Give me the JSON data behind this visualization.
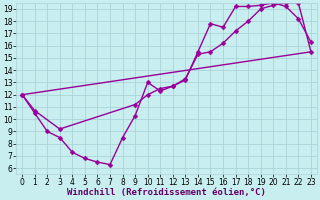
{
  "xlabel": "Windchill (Refroidissement éolien,°C)",
  "background_color": "#c8eef0",
  "grid_color": "#aad4d8",
  "line_color": "#990099",
  "xlim": [
    -0.5,
    23.5
  ],
  "ylim": [
    5.5,
    19.5
  ],
  "xticks": [
    0,
    1,
    2,
    3,
    4,
    5,
    6,
    7,
    8,
    9,
    10,
    11,
    12,
    13,
    14,
    15,
    16,
    17,
    18,
    19,
    20,
    21,
    22,
    23
  ],
  "yticks": [
    6,
    7,
    8,
    9,
    10,
    11,
    12,
    13,
    14,
    15,
    16,
    17,
    18,
    19
  ],
  "curve1_x": [
    0,
    1,
    2,
    3,
    4,
    5,
    6,
    7,
    8,
    9,
    10,
    11,
    12,
    13,
    14,
    15,
    16,
    17,
    18,
    19,
    20,
    21,
    22,
    23
  ],
  "curve1_y": [
    12.0,
    10.5,
    9.0,
    8.5,
    7.3,
    6.8,
    6.5,
    6.3,
    8.5,
    10.3,
    13.0,
    12.3,
    12.7,
    13.2,
    15.5,
    17.8,
    17.5,
    19.2,
    19.2,
    19.3,
    19.5,
    19.2,
    18.2,
    16.3
  ],
  "curve2_x": [
    0,
    1,
    3,
    9,
    10,
    11,
    12,
    13,
    14,
    15,
    16,
    17,
    18,
    19,
    20,
    21,
    22,
    23
  ],
  "curve2_y": [
    12.0,
    10.7,
    9.2,
    11.2,
    12.0,
    12.5,
    12.7,
    13.3,
    15.3,
    15.5,
    16.2,
    17.2,
    18.0,
    19.0,
    19.3,
    19.5,
    19.5,
    15.5
  ],
  "line3_x": [
    0,
    23
  ],
  "line3_y": [
    12.0,
    15.5
  ],
  "marker": "D",
  "markersize": 2.5,
  "lw": 1.0,
  "tick_fs": 5.5,
  "xlabel_fs": 6.5
}
